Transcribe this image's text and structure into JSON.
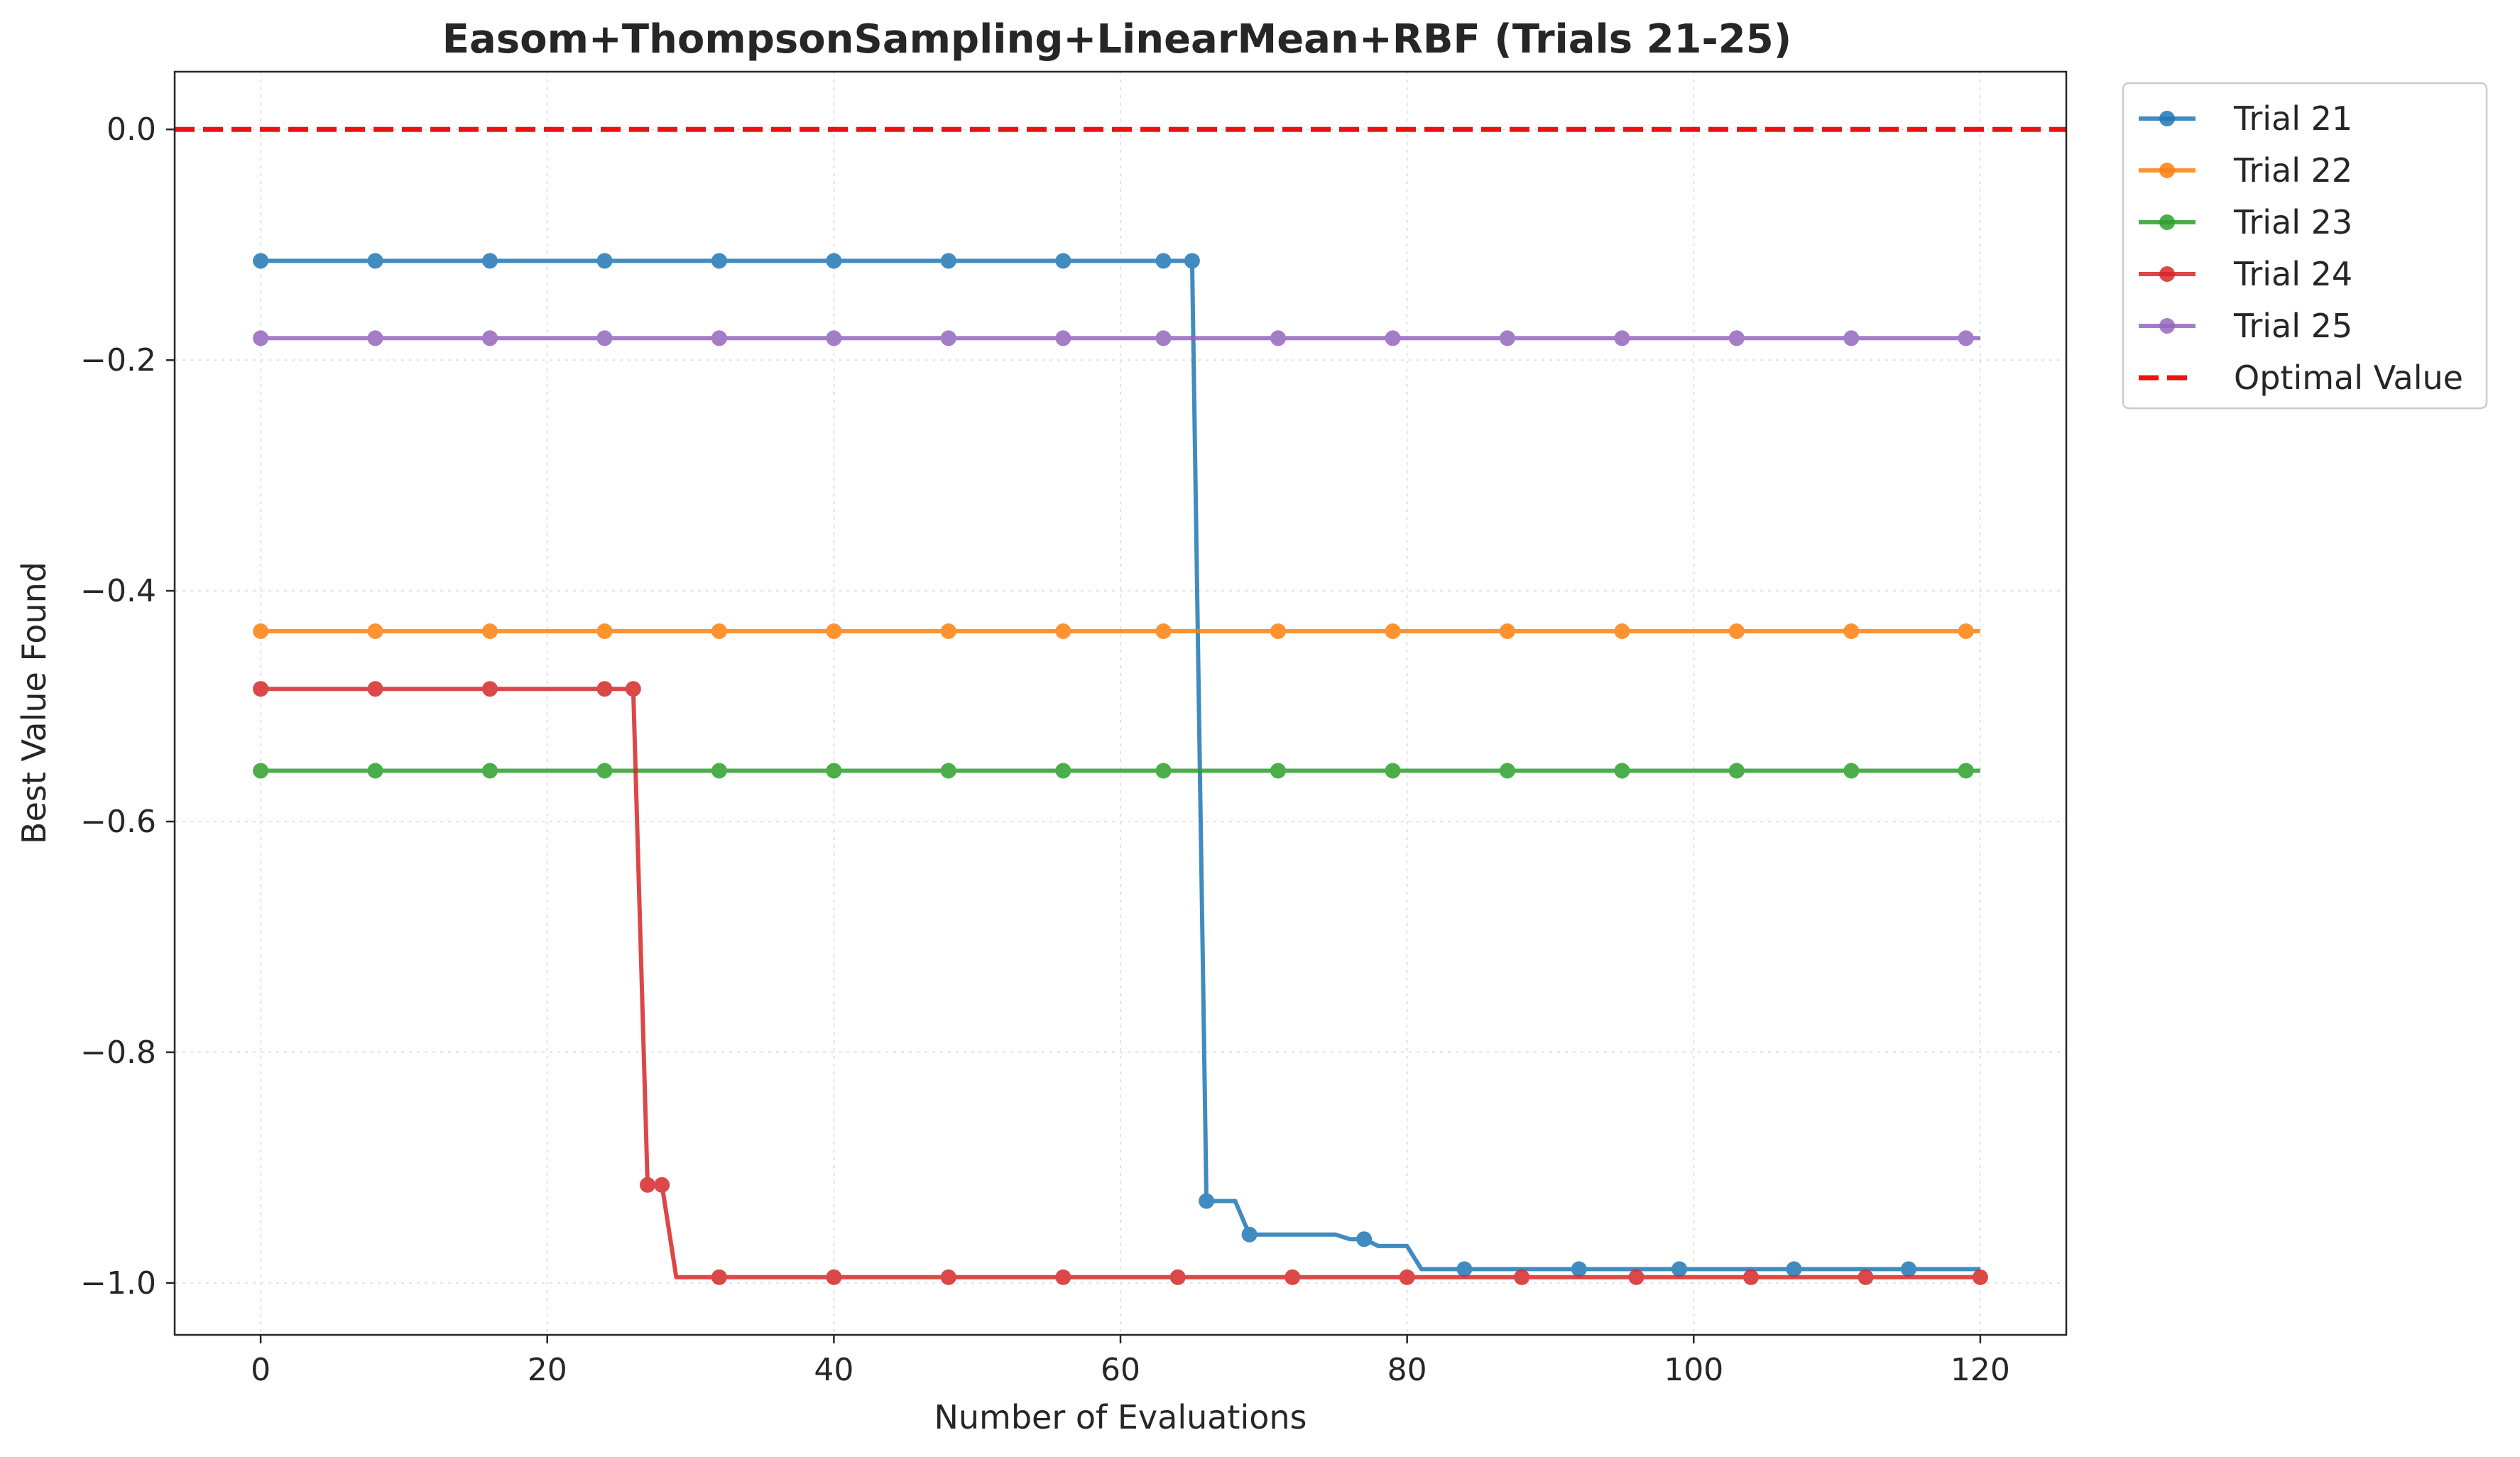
{
  "chart_data": {
    "type": "line",
    "title": "Easom+ThompsonSampling+LinearMean+RBF (Trials 21-25)",
    "xlabel": "Number of Evaluations",
    "ylabel": "Best Value Found",
    "xlim": [
      -6,
      126
    ],
    "ylim": [
      -1.045,
      0.05
    ],
    "xticks": [
      0,
      20,
      40,
      60,
      80,
      100,
      120
    ],
    "yticks": [
      0.0,
      -0.2,
      -0.4,
      -0.6,
      -0.8,
      -1.0
    ],
    "xtick_labels": [
      "0",
      "20",
      "40",
      "60",
      "80",
      "100",
      "120"
    ],
    "ytick_labels": [
      "0.0",
      "−0.2",
      "−0.4",
      "−0.6",
      "−0.8",
      "−1.0"
    ],
    "grid": true,
    "legend_position": "outside-top-right",
    "series": [
      {
        "name": "Trial 21",
        "color": "#1f77b4",
        "line": [
          [
            0,
            -0.114
          ],
          [
            65,
            -0.114
          ],
          [
            66,
            -0.929
          ],
          [
            68,
            -0.929
          ],
          [
            69,
            -0.958
          ],
          [
            75,
            -0.958
          ],
          [
            76,
            -0.962
          ],
          [
            77,
            -0.962
          ],
          [
            78,
            -0.968
          ],
          [
            80,
            -0.968
          ],
          [
            81,
            -0.988
          ],
          [
            120,
            -0.988
          ]
        ],
        "markers": [
          [
            0,
            -0.114
          ],
          [
            8,
            -0.114
          ],
          [
            16,
            -0.114
          ],
          [
            24,
            -0.114
          ],
          [
            32,
            -0.114
          ],
          [
            40,
            -0.114
          ],
          [
            48,
            -0.114
          ],
          [
            56,
            -0.114
          ],
          [
            63,
            -0.114
          ],
          [
            65,
            -0.114
          ],
          [
            66,
            -0.929
          ],
          [
            69,
            -0.958
          ],
          [
            77,
            -0.962
          ],
          [
            84,
            -0.988
          ],
          [
            92,
            -0.988
          ],
          [
            99,
            -0.988
          ],
          [
            107,
            -0.988
          ],
          [
            115,
            -0.988
          ]
        ]
      },
      {
        "name": "Trial 22",
        "color": "#ff7f0e",
        "line": [
          [
            0,
            -0.435
          ],
          [
            120,
            -0.435
          ]
        ],
        "markers": [
          [
            0,
            -0.435
          ],
          [
            8,
            -0.435
          ],
          [
            16,
            -0.435
          ],
          [
            24,
            -0.435
          ],
          [
            32,
            -0.435
          ],
          [
            40,
            -0.435
          ],
          [
            48,
            -0.435
          ],
          [
            56,
            -0.435
          ],
          [
            63,
            -0.435
          ],
          [
            71,
            -0.435
          ],
          [
            79,
            -0.435
          ],
          [
            87,
            -0.435
          ],
          [
            95,
            -0.435
          ],
          [
            103,
            -0.435
          ],
          [
            111,
            -0.435
          ],
          [
            119,
            -0.435
          ]
        ]
      },
      {
        "name": "Trial 23",
        "color": "#2ca02c",
        "line": [
          [
            0,
            -0.556
          ],
          [
            120,
            -0.556
          ]
        ],
        "markers": [
          [
            0,
            -0.556
          ],
          [
            8,
            -0.556
          ],
          [
            16,
            -0.556
          ],
          [
            24,
            -0.556
          ],
          [
            32,
            -0.556
          ],
          [
            40,
            -0.556
          ],
          [
            48,
            -0.556
          ],
          [
            56,
            -0.556
          ],
          [
            63,
            -0.556
          ],
          [
            71,
            -0.556
          ],
          [
            79,
            -0.556
          ],
          [
            87,
            -0.556
          ],
          [
            95,
            -0.556
          ],
          [
            103,
            -0.556
          ],
          [
            111,
            -0.556
          ],
          [
            119,
            -0.556
          ]
        ]
      },
      {
        "name": "Trial 24",
        "color": "#d62728",
        "line": [
          [
            0,
            -0.485
          ],
          [
            26,
            -0.485
          ],
          [
            27,
            -0.915
          ],
          [
            28,
            -0.915
          ],
          [
            29,
            -0.995
          ],
          [
            120,
            -0.995
          ]
        ],
        "markers": [
          [
            0,
            -0.485
          ],
          [
            8,
            -0.485
          ],
          [
            16,
            -0.485
          ],
          [
            24,
            -0.485
          ],
          [
            26,
            -0.485
          ],
          [
            27,
            -0.915
          ],
          [
            28,
            -0.915
          ],
          [
            32,
            -0.995
          ],
          [
            40,
            -0.995
          ],
          [
            48,
            -0.995
          ],
          [
            56,
            -0.995
          ],
          [
            64,
            -0.995
          ],
          [
            72,
            -0.995
          ],
          [
            80,
            -0.995
          ],
          [
            88,
            -0.995
          ],
          [
            96,
            -0.995
          ],
          [
            104,
            -0.995
          ],
          [
            112,
            -0.995
          ],
          [
            120,
            -0.995
          ]
        ]
      },
      {
        "name": "Trial 25",
        "color": "#9467bd",
        "line": [
          [
            0,
            -0.181
          ],
          [
            120,
            -0.181
          ]
        ],
        "markers": [
          [
            0,
            -0.181
          ],
          [
            8,
            -0.181
          ],
          [
            16,
            -0.181
          ],
          [
            24,
            -0.181
          ],
          [
            32,
            -0.181
          ],
          [
            40,
            -0.181
          ],
          [
            48,
            -0.181
          ],
          [
            56,
            -0.181
          ],
          [
            63,
            -0.181
          ],
          [
            71,
            -0.181
          ],
          [
            79,
            -0.181
          ],
          [
            87,
            -0.181
          ],
          [
            95,
            -0.181
          ],
          [
            103,
            -0.181
          ],
          [
            111,
            -0.181
          ],
          [
            119,
            -0.181
          ]
        ]
      }
    ],
    "reference_line": {
      "name": "Optimal Value",
      "y": 0.0,
      "color": "#ee1111",
      "style": "dashed"
    }
  }
}
